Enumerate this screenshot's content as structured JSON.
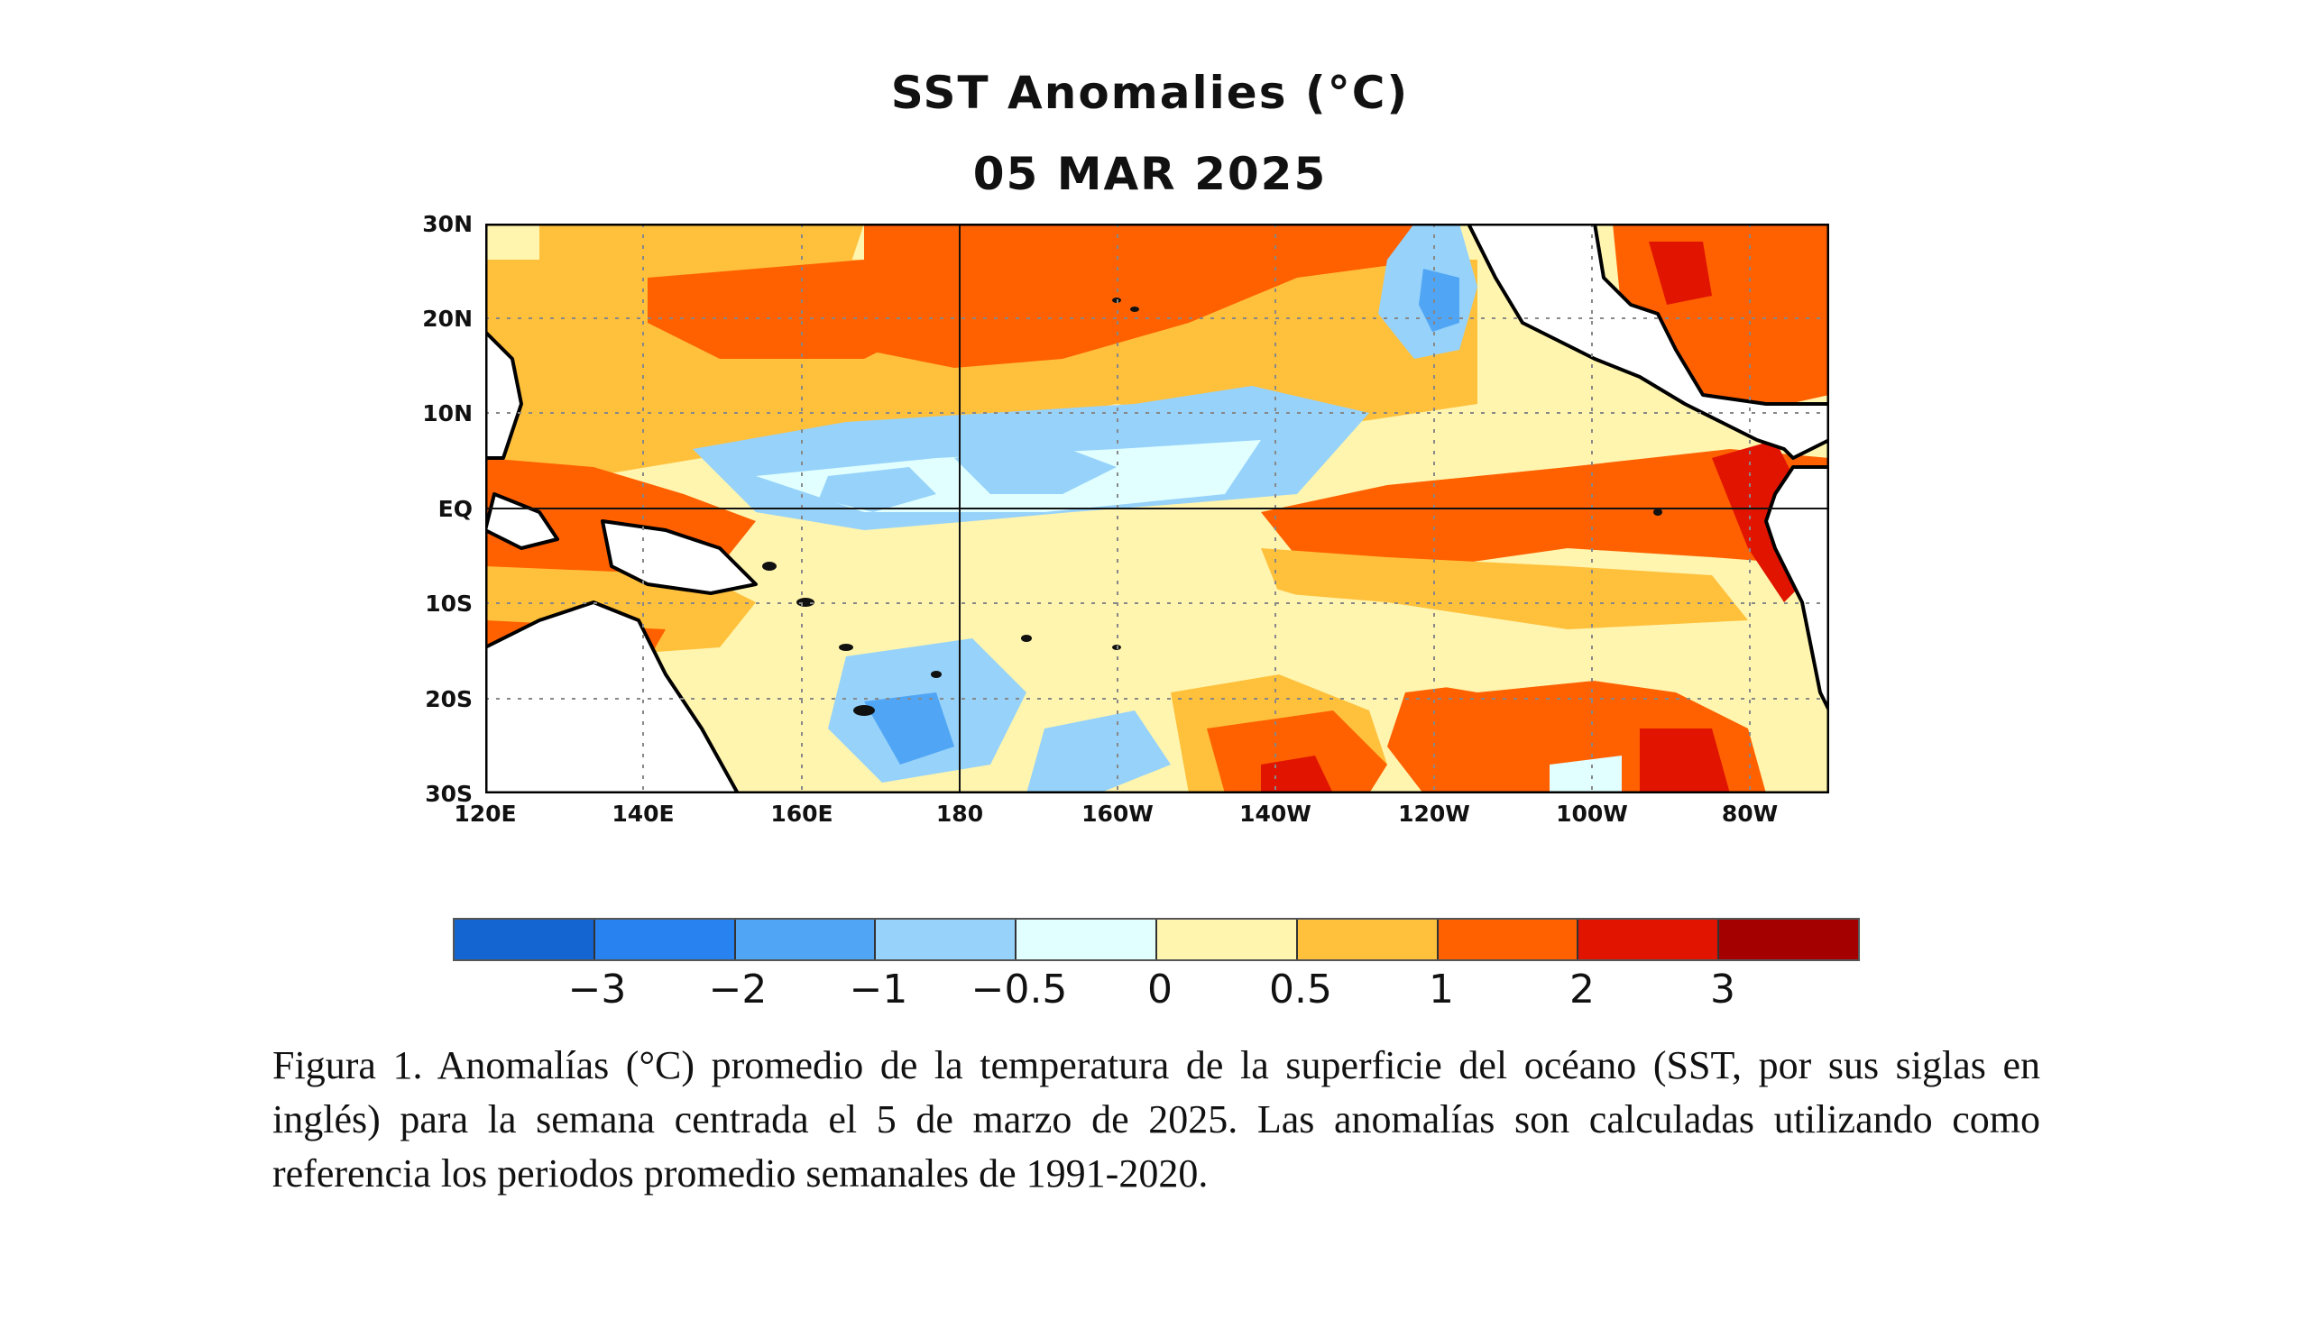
{
  "title": "SST Anomalies (°C)",
  "date": "05 MAR 2025",
  "map": {
    "region": "Tropical Pacific Ocean",
    "lat_labels": [
      "30N",
      "20N",
      "10N",
      "EQ",
      "10S",
      "20S",
      "30S"
    ],
    "lon_labels": [
      "120E",
      "140E",
      "160E",
      "180",
      "160W",
      "140W",
      "120W",
      "100W",
      "80W"
    ],
    "lat_range": [
      -30,
      30
    ],
    "lon_range": [
      120,
      290
    ],
    "gridlines": "dotted",
    "land_color": "#ffffff",
    "coastline_color": "#000000"
  },
  "colorbar": {
    "colors": [
      "#1464d2",
      "#2882f0",
      "#50a5f5",
      "#96d2fa",
      "#e1ffff",
      "#fff5ae",
      "#ffc03c",
      "#ff6000",
      "#e11400",
      "#a50000"
    ],
    "tick_labels": [
      "−3",
      "−2",
      "−1",
      "−0.5",
      "0",
      "0.5",
      "1",
      "2",
      "3"
    ]
  },
  "caption": "Figura 1. Anomalías (°C) promedio de la temperatura de la superficie del océano (SST, por sus siglas en inglés) para la semana centrada el 5 de marzo de 2025. Las anomalías son calculadas utilizando como referencia los periodos promedio semanales de 1991-2020."
}
